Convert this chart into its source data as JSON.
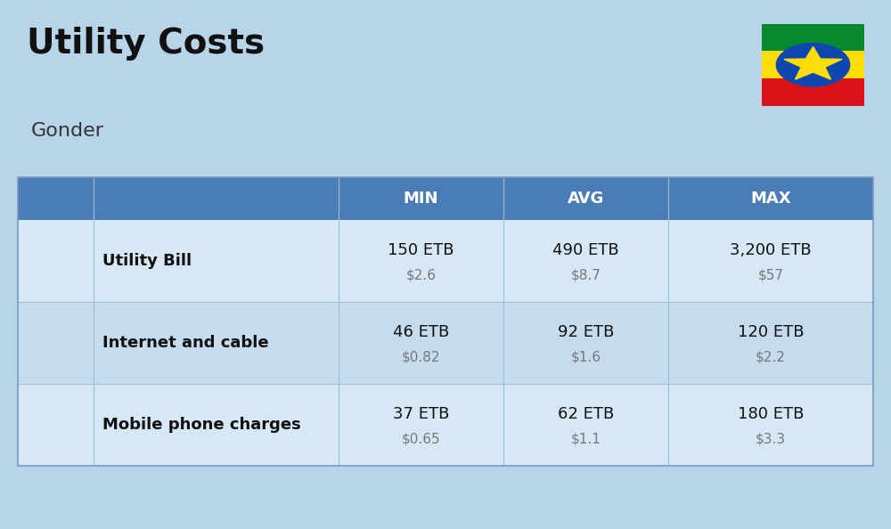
{
  "title": "Utility Costs",
  "subtitle": "Gonder",
  "background_color": "#B8D4E8",
  "header_bg_color": "#4A7DB5",
  "header_text_color": "#FFFFFF",
  "row_bg_color_light": "#D6E8F5",
  "row_bg_color_dark": "#C5DCEE",
  "rows": [
    {
      "label": "Utility Bill",
      "min_etb": "150 ETB",
      "min_usd": "$2.6",
      "avg_etb": "490 ETB",
      "avg_usd": "$8.7",
      "max_etb": "3,200 ETB",
      "max_usd": "$57"
    },
    {
      "label": "Internet and cable",
      "min_etb": "46 ETB",
      "min_usd": "$0.82",
      "avg_etb": "92 ETB",
      "avg_usd": "$1.6",
      "max_etb": "120 ETB",
      "max_usd": "$2.2"
    },
    {
      "label": "Mobile phone charges",
      "min_etb": "37 ETB",
      "min_usd": "$0.65",
      "avg_etb": "62 ETB",
      "avg_usd": "$1.1",
      "max_etb": "180 ETB",
      "max_usd": "$3.3"
    }
  ],
  "title_fontsize": 28,
  "subtitle_fontsize": 16,
  "header_fontsize": 13,
  "label_fontsize": 13,
  "value_fontsize": 13,
  "usd_fontsize": 11,
  "flag_green": "#078930",
  "flag_yellow": "#FCDD09",
  "flag_red": "#DA121A",
  "flag_blue": "#0F47AF"
}
